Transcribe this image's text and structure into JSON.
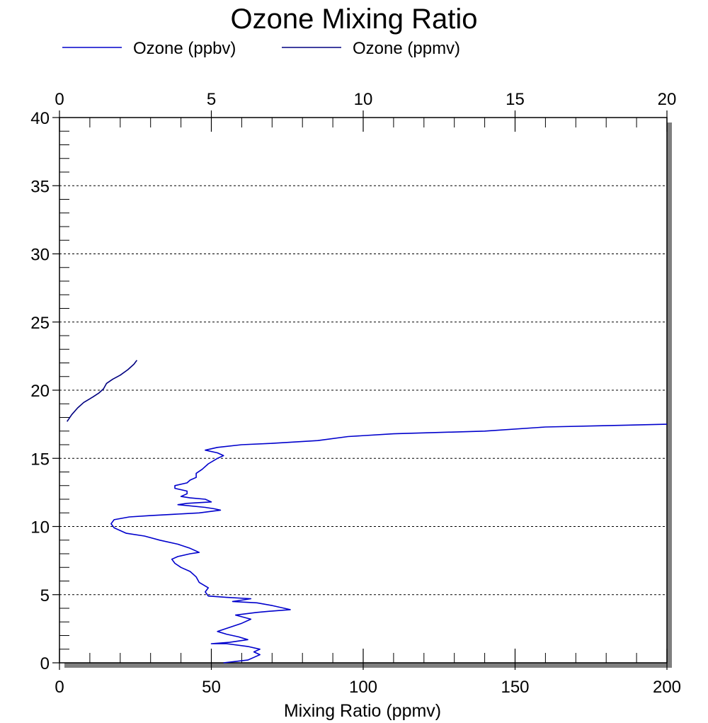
{
  "chart_data": {
    "type": "line",
    "title": "Ozone Mixing Ratio",
    "xlabel": "Mixing Ratio (ppmv)",
    "ylabel": "",
    "x_top_label": "",
    "xlim_bottom": [
      0,
      200
    ],
    "xlim_top": [
      0,
      20
    ],
    "ylim": [
      0,
      40
    ],
    "x_ticks_bottom": [
      "0",
      "50",
      "100",
      "150",
      "200"
    ],
    "x_ticks_top": [
      "0",
      "5",
      "10",
      "15",
      "20"
    ],
    "y_ticks": [
      "0",
      "5",
      "10",
      "15",
      "20",
      "25",
      "30",
      "35",
      "40"
    ],
    "grid": "horizontal dotted",
    "legend_position": "top",
    "series": [
      {
        "name": "Ozone (ppbv)",
        "axis": "bottom",
        "color": "#0000cc",
        "points": [
          [
            54,
            0.0
          ],
          [
            58,
            0.1
          ],
          [
            62,
            0.2
          ],
          [
            64,
            0.4
          ],
          [
            66,
            0.6
          ],
          [
            64,
            0.8
          ],
          [
            66,
            1.0
          ],
          [
            62,
            1.2
          ],
          [
            55,
            1.4
          ],
          [
            50,
            1.4
          ],
          [
            56,
            1.5
          ],
          [
            62,
            1.7
          ],
          [
            59,
            1.9
          ],
          [
            55,
            2.1
          ],
          [
            52,
            2.3
          ],
          [
            56,
            2.6
          ],
          [
            60,
            2.9
          ],
          [
            63,
            3.2
          ],
          [
            58,
            3.5
          ],
          [
            65,
            3.7
          ],
          [
            70,
            3.8
          ],
          [
            76,
            3.9
          ],
          [
            70,
            4.2
          ],
          [
            65,
            4.4
          ],
          [
            57,
            4.5
          ],
          [
            60,
            4.6
          ],
          [
            63,
            4.7
          ],
          [
            55,
            4.8
          ],
          [
            49,
            4.9
          ],
          [
            48,
            5.2
          ],
          [
            49,
            5.5
          ],
          [
            46,
            5.9
          ],
          [
            45,
            6.3
          ],
          [
            43,
            6.7
          ],
          [
            40,
            7.0
          ],
          [
            38,
            7.3
          ],
          [
            37,
            7.6
          ],
          [
            39,
            7.8
          ],
          [
            43,
            8.0
          ],
          [
            46,
            8.1
          ],
          [
            43,
            8.4
          ],
          [
            39,
            8.7
          ],
          [
            33,
            9.0
          ],
          [
            28,
            9.3
          ],
          [
            22,
            9.5
          ],
          [
            18,
            9.9
          ],
          [
            17,
            10.2
          ],
          [
            18,
            10.5
          ],
          [
            23,
            10.7
          ],
          [
            30,
            10.8
          ],
          [
            38,
            10.9
          ],
          [
            46,
            11.0
          ],
          [
            53,
            11.2
          ],
          [
            51,
            11.3
          ],
          [
            48,
            11.4
          ],
          [
            39,
            11.6
          ],
          [
            42,
            11.7
          ],
          [
            50,
            11.8
          ],
          [
            48,
            12.0
          ],
          [
            43,
            12.1
          ],
          [
            40,
            12.2
          ],
          [
            42,
            12.4
          ],
          [
            42,
            12.6
          ],
          [
            38,
            12.8
          ],
          [
            38,
            13.0
          ],
          [
            42,
            13.2
          ],
          [
            43,
            13.4
          ],
          [
            45,
            13.6
          ],
          [
            45,
            13.9
          ],
          [
            47,
            14.2
          ],
          [
            49,
            14.6
          ],
          [
            52,
            15.0
          ],
          [
            54,
            15.2
          ],
          [
            52,
            15.4
          ],
          [
            48,
            15.6
          ],
          [
            52,
            15.8
          ],
          [
            60,
            16.0
          ],
          [
            70,
            16.1
          ],
          [
            85,
            16.3
          ],
          [
            95,
            16.6
          ],
          [
            110,
            16.8
          ],
          [
            140,
            17.0
          ],
          [
            160,
            17.3
          ],
          [
            180,
            17.4
          ],
          [
            200,
            17.5
          ]
        ]
      },
      {
        "name": "Ozone (ppmv)",
        "axis": "top",
        "color": "#000080",
        "points": [
          [
            0.25,
            17.7
          ],
          [
            0.4,
            18.2
          ],
          [
            0.6,
            18.7
          ],
          [
            0.8,
            19.1
          ],
          [
            1.1,
            19.5
          ],
          [
            1.3,
            19.8
          ],
          [
            1.45,
            20.1
          ],
          [
            1.55,
            20.5
          ],
          [
            1.75,
            20.8
          ],
          [
            2.0,
            21.1
          ],
          [
            2.25,
            21.5
          ],
          [
            2.45,
            21.9
          ],
          [
            2.55,
            22.2
          ]
        ]
      }
    ]
  }
}
